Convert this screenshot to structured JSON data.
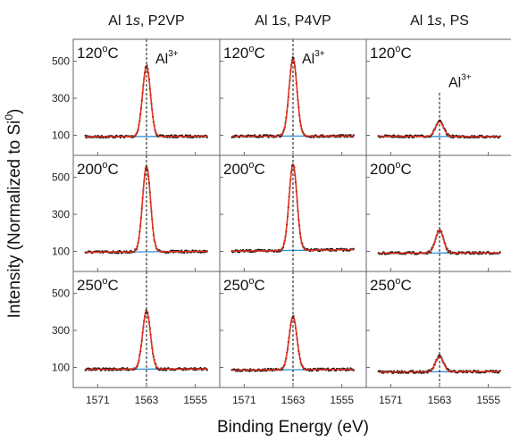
{
  "chart_data": {
    "type": "line",
    "xlabel": "Binding Energy (eV)",
    "ylabel_prefix": "Intensity (Normalized to Si",
    "ylabel_sup": "0",
    "ylabel_suffix": ")",
    "xlim": [
      1575,
      1551
    ],
    "x_reversed": true,
    "ylim": [
      30,
      580
    ],
    "x_ticks": [
      1571,
      1563,
      1555
    ],
    "y_ticks": [
      100,
      300,
      500
    ],
    "peak_position": 1563,
    "peak_label_main": "Al",
    "peak_label_sup": "3+",
    "columns": [
      {
        "title_prefix": "Al 1",
        "title_italic": "s",
        "title_suffix": ", P2VP"
      },
      {
        "title_prefix": "Al 1",
        "title_italic": "s",
        "title_suffix": ", P4VP"
      },
      {
        "title_prefix": "Al 1",
        "title_italic": "s",
        "title_suffix": ", PS"
      }
    ],
    "rows": [
      {
        "temp": "120",
        "unit_sup": "o",
        "unit": "C"
      },
      {
        "temp": "200",
        "unit_sup": "o",
        "unit": "C"
      },
      {
        "temp": "250",
        "unit_sup": "o",
        "unit": "C"
      }
    ],
    "panels": [
      {
        "row": 0,
        "col": 0,
        "peak_height": 475,
        "baseline_start": 92,
        "baseline_end": 95,
        "peak_label": true
      },
      {
        "row": 0,
        "col": 1,
        "peak_height": 515,
        "baseline_start": 95,
        "baseline_end": 96,
        "peak_label": true
      },
      {
        "row": 0,
        "col": 2,
        "peak_height": 175,
        "baseline_start": 95,
        "baseline_end": 92,
        "peak_label": true
      },
      {
        "row": 1,
        "col": 0,
        "peak_height": 560,
        "baseline_start": 95,
        "baseline_end": 100,
        "peak_label": false
      },
      {
        "row": 1,
        "col": 1,
        "peak_height": 570,
        "baseline_start": 100,
        "baseline_end": 110,
        "peak_label": false
      },
      {
        "row": 1,
        "col": 2,
        "peak_height": 215,
        "baseline_start": 90,
        "baseline_end": 92,
        "peak_label": false
      },
      {
        "row": 2,
        "col": 0,
        "peak_height": 405,
        "baseline_start": 90,
        "baseline_end": 92,
        "peak_label": false
      },
      {
        "row": 2,
        "col": 1,
        "peak_height": 375,
        "baseline_start": 85,
        "baseline_end": 90,
        "peak_label": false
      },
      {
        "row": 2,
        "col": 2,
        "peak_height": 160,
        "baseline_start": 75,
        "baseline_end": 78,
        "peak_label": false
      }
    ],
    "colors": {
      "data_points": "#111111",
      "fit": "#e0301e",
      "background": "#2e8fd6",
      "peak_line": "#111111"
    }
  }
}
